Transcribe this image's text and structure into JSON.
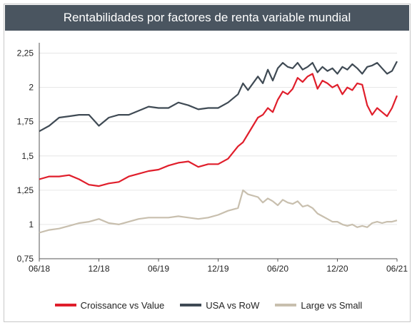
{
  "chart_data": {
    "type": "line",
    "title": "Rentabilidades por factores de renta variable mundial",
    "xlabel": "",
    "ylabel": "",
    "ylim": [
      0.75,
      2.3
    ],
    "yticks": [
      "0,75",
      "1",
      "1,25",
      "1,5",
      "1,75",
      "2",
      "2,25"
    ],
    "ytick_values": [
      0.75,
      1,
      1.25,
      1.5,
      1.75,
      2,
      2.25
    ],
    "xtick_labels": [
      "06/18",
      "12/18",
      "06/19",
      "12/19",
      "06/20",
      "12/20",
      "06/21"
    ],
    "xtick_values": [
      0,
      6,
      12,
      18,
      24,
      30,
      36
    ],
    "grid": "horizontal",
    "legend_position": "bottom",
    "series": [
      {
        "name": "Croissance vs Value",
        "color": "#e01e2b",
        "x": [
          0,
          1,
          2,
          3,
          4,
          5,
          6,
          7,
          8,
          9,
          10,
          11,
          12,
          13,
          14,
          15,
          16,
          17,
          18,
          19,
          20,
          20.5,
          21,
          22,
          22.5,
          23,
          23.5,
          24,
          24.5,
          25,
          25.5,
          26,
          26.5,
          27,
          27.5,
          28,
          28.5,
          29,
          29.5,
          30,
          30.5,
          31,
          31.5,
          32,
          32.5,
          33,
          33.5,
          34,
          34.5,
          35,
          35.5,
          36
        ],
        "y": [
          1.33,
          1.35,
          1.35,
          1.36,
          1.33,
          1.29,
          1.28,
          1.3,
          1.31,
          1.35,
          1.37,
          1.39,
          1.4,
          1.43,
          1.45,
          1.46,
          1.42,
          1.44,
          1.44,
          1.48,
          1.57,
          1.6,
          1.66,
          1.78,
          1.8,
          1.85,
          1.82,
          1.91,
          1.97,
          1.95,
          1.99,
          2.07,
          2.04,
          2.08,
          2.1,
          1.99,
          2.05,
          2.03,
          2.0,
          2.02,
          1.95,
          2.0,
          1.98,
          2.03,
          2.02,
          1.87,
          1.8,
          1.85,
          1.82,
          1.79,
          1.85,
          1.94
        ]
      },
      {
        "name": "USA vs RoW",
        "color": "#3f4a54",
        "x": [
          0,
          1,
          2,
          3,
          4,
          5,
          6,
          7,
          8,
          9,
          10,
          11,
          12,
          13,
          14,
          15,
          16,
          17,
          18,
          19,
          20,
          20.5,
          21,
          22,
          22.5,
          23,
          23.5,
          24,
          24.5,
          25,
          25.5,
          26,
          26.5,
          27,
          27.5,
          28,
          28.5,
          29,
          29.5,
          30,
          30.5,
          31,
          31.5,
          32,
          32.5,
          33,
          33.5,
          34,
          34.5,
          35,
          35.5,
          36
        ],
        "y": [
          1.68,
          1.72,
          1.78,
          1.79,
          1.8,
          1.8,
          1.72,
          1.78,
          1.8,
          1.8,
          1.83,
          1.86,
          1.85,
          1.85,
          1.89,
          1.87,
          1.84,
          1.85,
          1.85,
          1.89,
          1.95,
          2.03,
          1.98,
          2.08,
          2.03,
          2.13,
          2.05,
          2.14,
          2.18,
          2.15,
          2.14,
          2.18,
          2.13,
          2.15,
          2.18,
          2.11,
          2.15,
          2.12,
          2.14,
          2.1,
          2.15,
          2.13,
          2.17,
          2.14,
          2.1,
          2.15,
          2.16,
          2.18,
          2.14,
          2.1,
          2.12,
          2.19
        ]
      },
      {
        "name": "Large vs Small",
        "color": "#c8bfae",
        "x": [
          0,
          1,
          2,
          3,
          4,
          5,
          6,
          7,
          8,
          9,
          10,
          11,
          12,
          13,
          14,
          15,
          16,
          17,
          18,
          19,
          20,
          20.5,
          21,
          22,
          22.5,
          23,
          23.5,
          24,
          24.5,
          25,
          25.5,
          26,
          26.5,
          27,
          27.5,
          28,
          28.5,
          29,
          29.5,
          30,
          30.5,
          31,
          31.5,
          32,
          32.5,
          33,
          33.5,
          34,
          34.5,
          35,
          35.5,
          36
        ],
        "y": [
          0.94,
          0.96,
          0.97,
          0.99,
          1.01,
          1.02,
          1.04,
          1.01,
          1.0,
          1.02,
          1.04,
          1.05,
          1.05,
          1.05,
          1.06,
          1.05,
          1.04,
          1.05,
          1.07,
          1.1,
          1.12,
          1.25,
          1.22,
          1.2,
          1.16,
          1.19,
          1.17,
          1.14,
          1.18,
          1.16,
          1.15,
          1.17,
          1.13,
          1.14,
          1.12,
          1.08,
          1.06,
          1.04,
          1.02,
          1.02,
          1.0,
          0.99,
          1.0,
          0.98,
          0.99,
          0.98,
          1.01,
          1.02,
          1.01,
          1.02,
          1.02,
          1.03
        ]
      }
    ]
  }
}
